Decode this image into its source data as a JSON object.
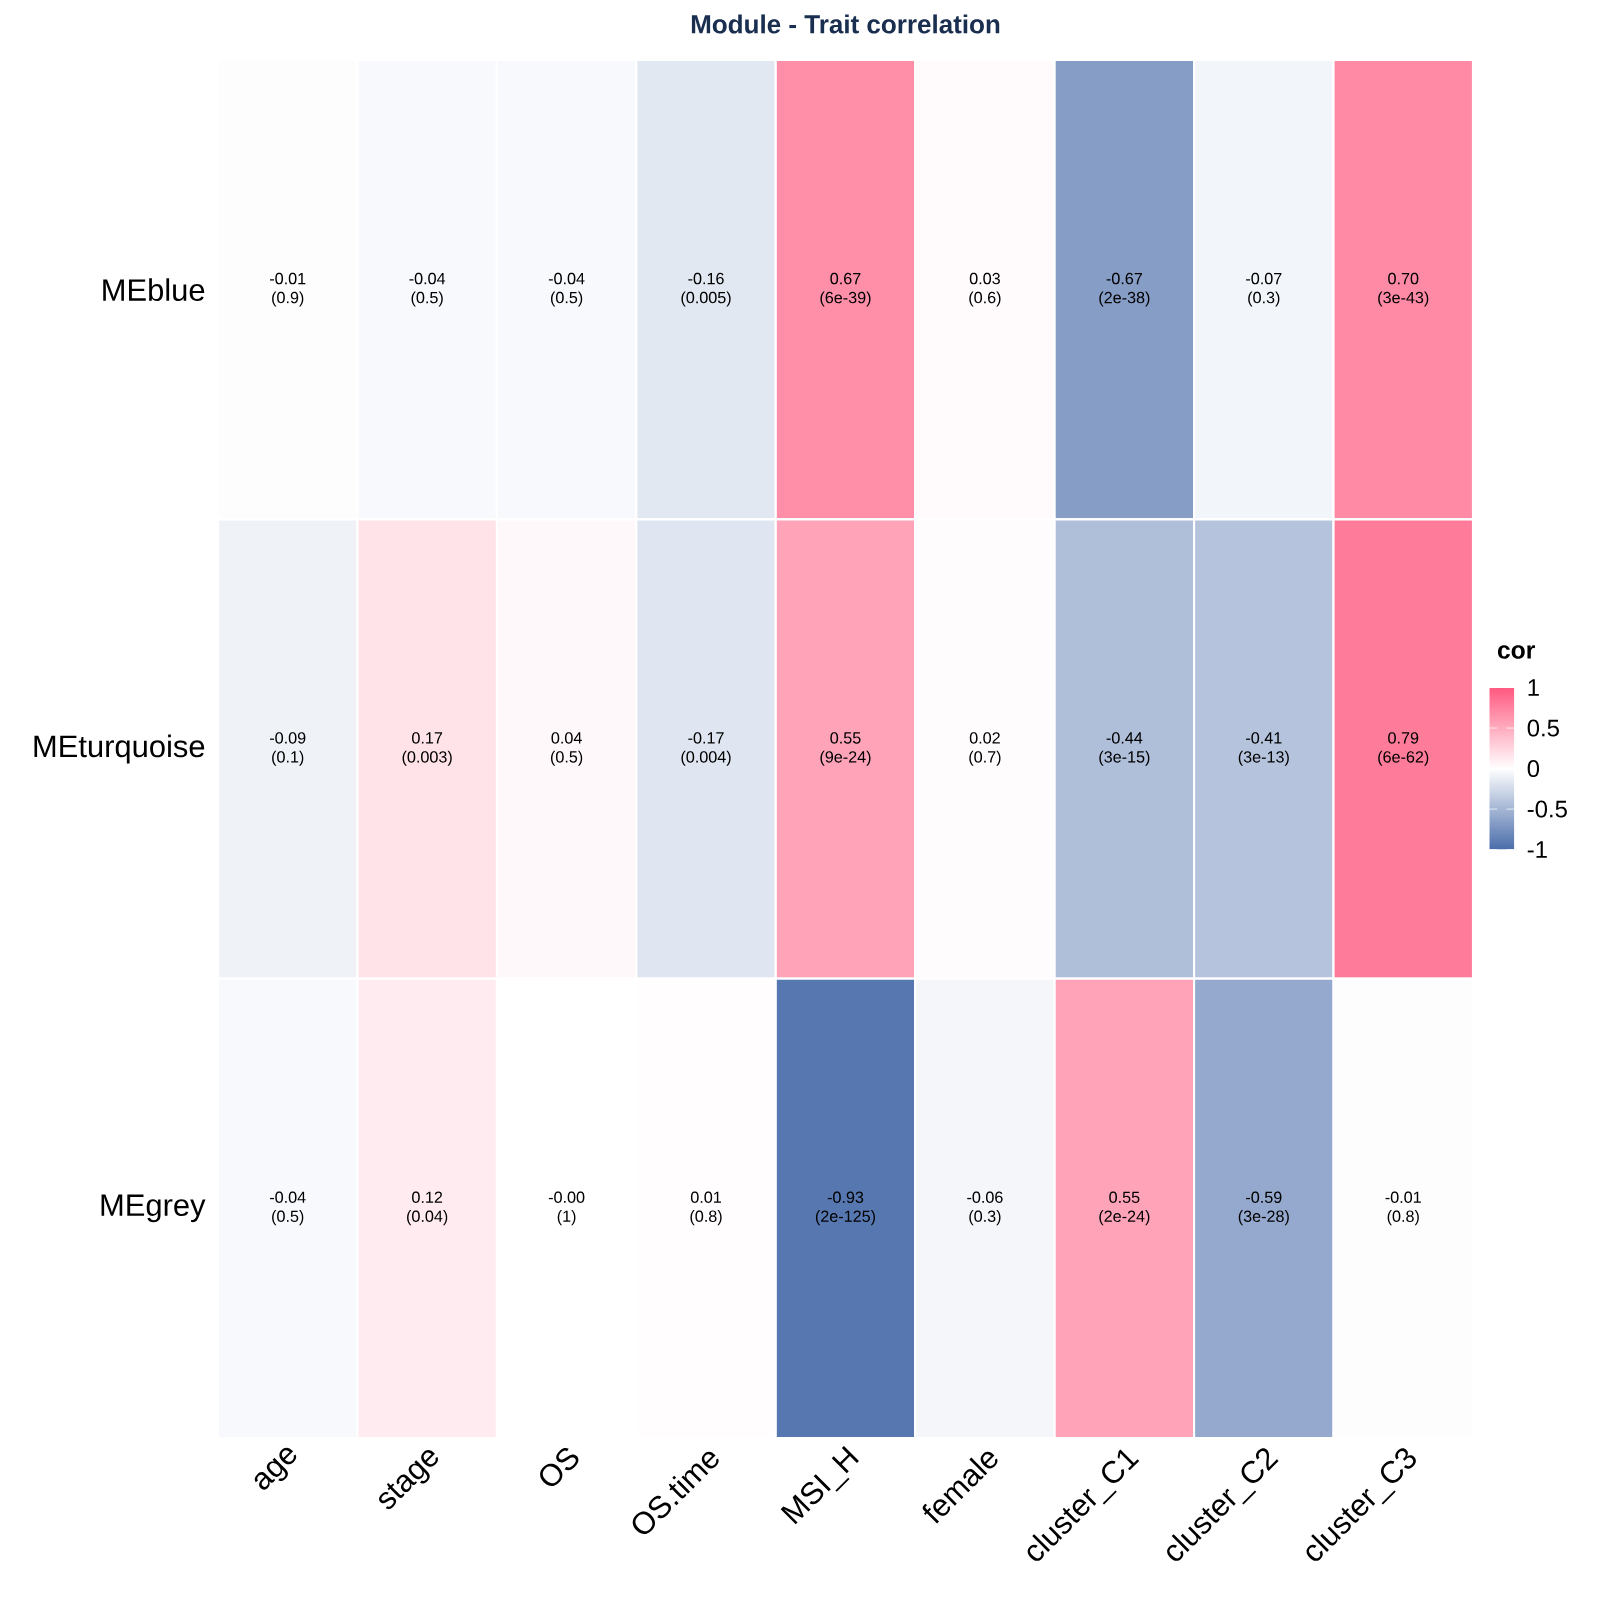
{
  "chart_data": {
    "type": "heatmap",
    "title": "Module - Trait correlation",
    "clabel": "cor",
    "categories": [
      "age",
      "stage",
      "OS",
      "OS.time",
      "MSI_H",
      "female",
      "cluster_C1",
      "cluster_C2",
      "cluster_C3"
    ],
    "y_categories": [
      "MEblue",
      "MEturquoise",
      "MEgrey"
    ],
    "cells": [
      [
        -0.01,
        -0.04,
        -0.04,
        -0.16,
        0.67,
        0.03,
        -0.67,
        -0.07,
        0.7
      ],
      [
        -0.09,
        0.17,
        0.04,
        -0.17,
        0.55,
        0.02,
        -0.44,
        -0.41,
        0.79
      ],
      [
        -0.04,
        0.12,
        -0.0,
        0.01,
        -0.93,
        -0.06,
        0.55,
        -0.59,
        -0.01
      ]
    ],
    "cell_labels": [
      [
        "-0.01\n(0.9)",
        "-0.04\n(0.5)",
        "-0.04\n(0.5)",
        "-0.16\n(0.005)",
        "0.67\n(6e-39)",
        "0.03\n(0.6)",
        "-0.67\n(2e-38)",
        "-0.07\n(0.3)",
        "0.70\n(3e-43)"
      ],
      [
        "-0.09\n(0.1)",
        "0.17\n(0.003)",
        "0.04\n(0.5)",
        "-0.17\n(0.004)",
        "0.55\n(9e-24)",
        "0.02\n(0.7)",
        "-0.44\n(3e-15)",
        "-0.41\n(3e-13)",
        "0.79\n(6e-62)"
      ],
      [
        "-0.04\n(0.5)",
        "0.12\n(0.04)",
        "-0.00\n(1)",
        "0.01\n(0.8)",
        "-0.93\n(2e-125)",
        "-0.06\n(0.3)",
        "0.55\n(2e-24)",
        "-0.59\n(3e-28)",
        "-0.01\n(0.8)"
      ]
    ],
    "clim": [
      -1,
      1
    ],
    "cticks": [
      -1,
      -0.5,
      0,
      0.5,
      1
    ]
  }
}
